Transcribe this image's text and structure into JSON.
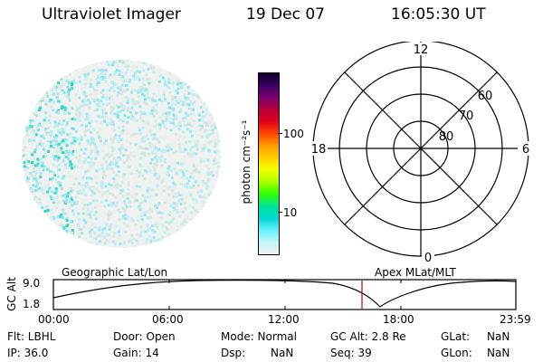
{
  "header": {
    "instrument": "Ultraviolet Imager",
    "date": "19 Dec 07",
    "time": "16:05:30 UT"
  },
  "colorbar": {
    "unit_label": "photon cm⁻²s⁻¹",
    "ticks": [
      "100",
      "10"
    ],
    "colors": [
      "#11002a",
      "#3a0060",
      "#7a0070",
      "#b50038",
      "#e0001e",
      "#ff4400",
      "#ff9d00",
      "#ffd000",
      "#f3ff00",
      "#a8ff00",
      "#2eff00",
      "#00e39a",
      "#00d8d0",
      "#66f0ff",
      "#c2f6f4",
      "#eef3f1"
    ]
  },
  "polar_plot": {
    "hour_labels": {
      "top": "12",
      "left": "18",
      "right": "6",
      "bottom": "0"
    },
    "lat_labels": [
      "80",
      "70",
      "60"
    ]
  },
  "altitude_panel": {
    "y_label": "GC Alt",
    "y_ticks": [
      "9.0",
      "1.8"
    ],
    "left_label": "Geographic Lat/Lon",
    "right_label": "Apex MLat/MLT",
    "x_ticks": [
      "00:00",
      "06:00",
      "12:00",
      "18:00",
      "23:59"
    ],
    "marker_color": "#cc0000"
  },
  "status": {
    "flt": "Flt: LBHL",
    "ip": "IP: 36.0",
    "door": "Door: Open",
    "gain": "Gain: 14",
    "mode": "Mode: Normal",
    "dsp": "Dsp:",
    "dsp_val": "NaN",
    "gcalt": "GC Alt: 2.8 Re",
    "seq": "Seq: 39",
    "glat": "GLat:",
    "glat_val": "NaN",
    "glon": "GLon:",
    "glon_val": "NaN"
  }
}
